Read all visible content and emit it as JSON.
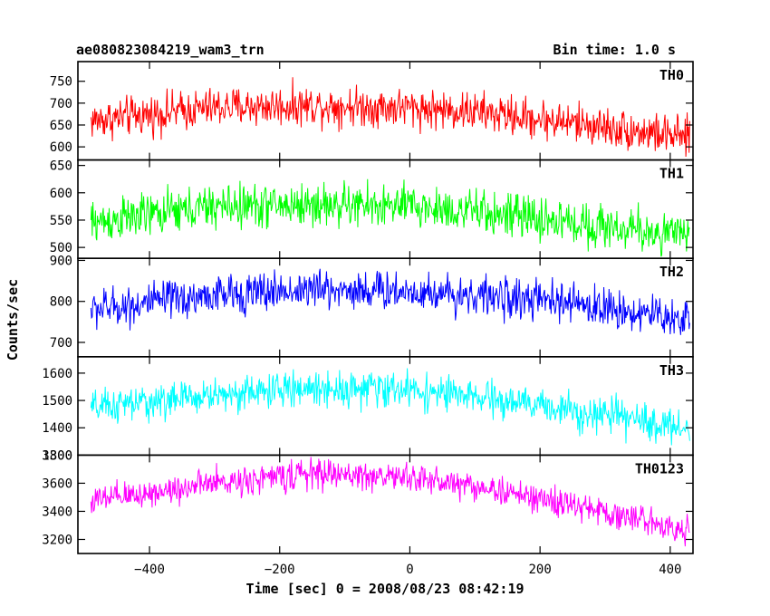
{
  "header": {
    "title": "ae080823084219_wam3_trn",
    "bin_time": "Bin time: 1.0 s"
  },
  "axes": {
    "xlabel": "Time [sec] 0 = 2008/08/23 08:42:19",
    "ylabel": "Counts/sec"
  },
  "chart_data": {
    "type": "line",
    "x_range": [
      -510,
      435
    ],
    "x_ticks": [
      -400,
      -200,
      0,
      200,
      400
    ],
    "x_tick_labels": [
      "−400",
      "−200",
      "0",
      "200",
      "400"
    ],
    "time_start": -490,
    "time_end": 430,
    "bin_time_s": 1.0,
    "panels": [
      {
        "name": "TH0",
        "color": "#ff0000",
        "ylim": [
          570,
          795
        ],
        "yticks": [
          600,
          650,
          700,
          750
        ],
        "trend": [
          [
            -490,
            660
          ],
          [
            -300,
            690
          ],
          [
            -150,
            695
          ],
          [
            0,
            690
          ],
          [
            100,
            680
          ],
          [
            250,
            655
          ],
          [
            430,
            620
          ]
        ],
        "noise": 28
      },
      {
        "name": "TH1",
        "color": "#00ff00",
        "ylim": [
          480,
          660
        ],
        "yticks": [
          500,
          550,
          600,
          650
        ],
        "trend": [
          [
            -490,
            545
          ],
          [
            -300,
            575
          ],
          [
            -150,
            578
          ],
          [
            0,
            575
          ],
          [
            100,
            565
          ],
          [
            250,
            545
          ],
          [
            430,
            520
          ]
        ],
        "noise": 25
      },
      {
        "name": "TH2",
        "color": "#0000ff",
        "ylim": [
          665,
          905
        ],
        "yticks": [
          700,
          800,
          900
        ],
        "trend": [
          [
            -490,
            780
          ],
          [
            -300,
            815
          ],
          [
            -150,
            830
          ],
          [
            0,
            825
          ],
          [
            100,
            815
          ],
          [
            250,
            795
          ],
          [
            430,
            755
          ]
        ],
        "noise": 30
      },
      {
        "name": "TH3",
        "color": "#00ffff",
        "ylim": [
          1300,
          1660
        ],
        "yticks": [
          1300,
          1400,
          1500,
          1600
        ],
        "trend": [
          [
            -490,
            1470
          ],
          [
            -300,
            1520
          ],
          [
            -150,
            1545
          ],
          [
            0,
            1540
          ],
          [
            100,
            1510
          ],
          [
            250,
            1465
          ],
          [
            430,
            1395
          ]
        ],
        "noise": 40
      },
      {
        "name": "TH0123",
        "color": "#ff00ff",
        "ylim": [
          3100,
          3800
        ],
        "yticks": [
          3200,
          3400,
          3600,
          3800
        ],
        "trend": [
          [
            -490,
            3470
          ],
          [
            -300,
            3600
          ],
          [
            -150,
            3670
          ],
          [
            0,
            3640
          ],
          [
            100,
            3580
          ],
          [
            250,
            3440
          ],
          [
            430,
            3270
          ]
        ],
        "noise": 65
      }
    ]
  }
}
